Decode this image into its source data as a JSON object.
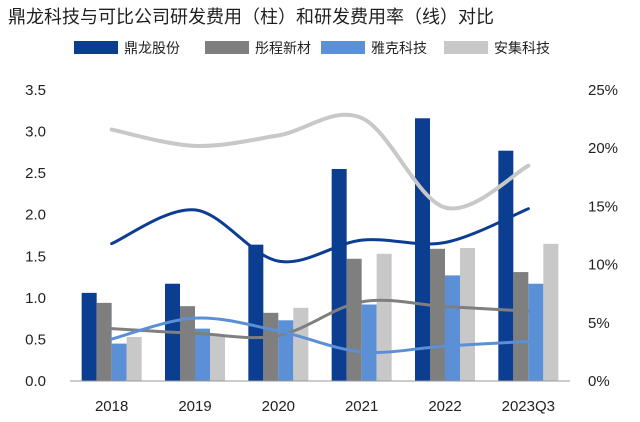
{
  "chart_data": {
    "type": "bar",
    "title": "鼎龙科技与可比公司研发费用（柱）和研发费用率（线）对比",
    "categories": [
      "2018",
      "2019",
      "2020",
      "2021",
      "2022",
      "2023Q3"
    ],
    "y_left": {
      "range": [
        0,
        3.5
      ],
      "ticks": [
        "0.0",
        "0.5",
        "1.0",
        "1.5",
        "2.0",
        "2.5",
        "3.0",
        "3.5"
      ]
    },
    "y_right": {
      "range": [
        0,
        25
      ],
      "ticks": [
        "0%",
        "5%",
        "10%",
        "15%",
        "20%",
        "25%"
      ]
    },
    "grid": false,
    "legend_position": "top",
    "series": [
      {
        "name": "鼎龙股份",
        "color": "#0b3d91",
        "values": [
          1.06,
          1.17,
          1.64,
          2.55,
          3.16,
          2.77
        ],
        "rate": [
          11.8,
          14.7,
          10.3,
          12.1,
          11.9,
          14.8
        ]
      },
      {
        "name": "彤程新材",
        "color": "#7f7f7f",
        "values": [
          0.94,
          0.9,
          0.82,
          1.47,
          1.59,
          1.31
        ],
        "rate": [
          4.5,
          4.1,
          3.9,
          6.8,
          6.4,
          6.0
        ]
      },
      {
        "name": "雅克科技",
        "color": "#5b8fd6",
        "values": [
          0.45,
          0.63,
          0.73,
          0.92,
          1.27,
          1.17
        ],
        "rate": [
          3.6,
          5.4,
          4.3,
          2.5,
          3.0,
          3.4
        ]
      },
      {
        "name": "安集科技",
        "color": "#c8c8c8",
        "values": [
          0.53,
          0.55,
          0.88,
          1.53,
          1.6,
          1.65
        ],
        "rate": [
          21.6,
          20.2,
          21.1,
          22.6,
          14.9,
          18.5
        ]
      }
    ]
  }
}
